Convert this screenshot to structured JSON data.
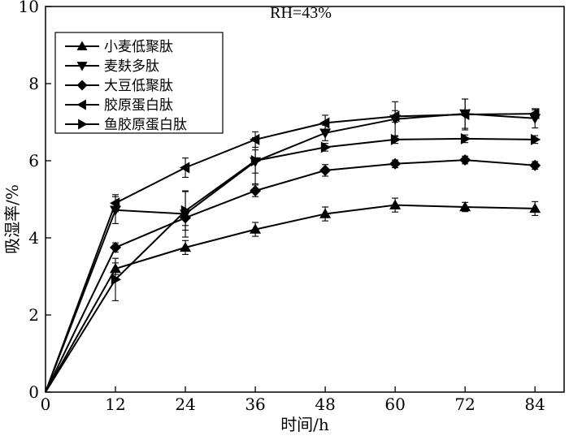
{
  "chart_data": {
    "type": "line",
    "title": "RH=43%",
    "xlabel": "时间/h",
    "ylabel": "吸湿率/%",
    "x": [
      0,
      12,
      24,
      36,
      48,
      60,
      72,
      84
    ],
    "xticks": [
      "0",
      "12",
      "24",
      "36",
      "48",
      "60",
      "72",
      "84"
    ],
    "yticks": [
      "0",
      "2",
      "4",
      "6",
      "8",
      "10"
    ],
    "xlim": [
      0,
      89
    ],
    "ylim": [
      0,
      10
    ],
    "legend_position": "top-left",
    "series": [
      {
        "name": "小麦低聚肽",
        "marker": "triangle-up",
        "values": [
          0,
          3.2,
          3.75,
          4.22,
          4.62,
          4.85,
          4.8,
          4.76
        ],
        "errors": [
          0,
          0.15,
          0.18,
          0.18,
          0.18,
          0.18,
          0.12,
          0.18
        ]
      },
      {
        "name": "麦麸多肽",
        "marker": "triangle-down",
        "values": [
          0,
          4.72,
          4.62,
          5.98,
          6.72,
          7.08,
          7.22,
          7.1
        ],
        "errors": [
          0,
          0.35,
          0.6,
          0.3,
          0.2,
          0.45,
          0.38,
          0.25
        ]
      },
      {
        "name": "大豆低聚肽",
        "marker": "diamond",
        "values": [
          0,
          3.75,
          4.52,
          5.22,
          5.75,
          5.92,
          6.02,
          5.88
        ],
        "errors": [
          0,
          0.12,
          0.2,
          0.15,
          0.15,
          0.1,
          0.1,
          0.1
        ]
      },
      {
        "name": "胶原蛋白肽",
        "marker": "triangle-left",
        "values": [
          0,
          4.9,
          5.82,
          6.55,
          6.98,
          7.15,
          7.2,
          7.22
        ],
        "errors": [
          0,
          0.22,
          0.25,
          0.2,
          0.2,
          0.15,
          0.4,
          0.1
        ]
      },
      {
        "name": "鱼胶原蛋白肽",
        "marker": "triangle-right",
        "values": [
          0,
          2.92,
          4.7,
          6.0,
          6.35,
          6.55,
          6.57,
          6.55
        ],
        "errors": [
          0,
          0.55,
          0.5,
          0.6,
          0.1,
          0.1,
          0.1,
          0.1
        ]
      }
    ]
  }
}
